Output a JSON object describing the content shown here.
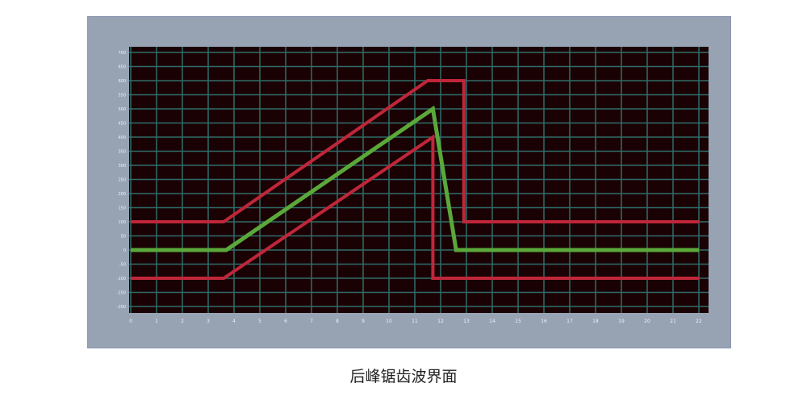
{
  "caption": "后峰锯齿波界面",
  "chart_data": {
    "type": "line",
    "title": "",
    "xlabel": "",
    "ylabel": "",
    "xlim": [
      0,
      22
    ],
    "ylim": [
      -200,
      700
    ],
    "x_ticks": [
      0,
      1,
      2,
      3,
      4,
      5,
      6,
      7,
      8,
      9,
      10,
      11,
      12,
      13,
      14,
      15,
      16,
      17,
      18,
      19,
      20,
      21,
      22
    ],
    "y_ticks": [
      700,
      650,
      600,
      550,
      500,
      450,
      400,
      350,
      300,
      250,
      200,
      150,
      100,
      50,
      0,
      -50,
      -100,
      -150,
      -200
    ],
    "grid": true,
    "colors": {
      "plot_bg": "#1a0204",
      "grid": "#2f6d6a",
      "frame": "#97a3b3",
      "waveform": "#5aa83a",
      "tolerance": "#c0263a"
    },
    "series": [
      {
        "role": "upper-tolerance",
        "color": "#c0263a",
        "points": [
          [
            0,
            100
          ],
          [
            3.6,
            100
          ],
          [
            11.5,
            600
          ],
          [
            12.9,
            600
          ],
          [
            12.9,
            100
          ],
          [
            22,
            100
          ]
        ]
      },
      {
        "role": "waveform",
        "color": "#5aa83a",
        "points": [
          [
            0,
            0
          ],
          [
            3.7,
            0
          ],
          [
            11.7,
            500
          ],
          [
            12.6,
            0
          ],
          [
            22,
            0
          ]
        ]
      },
      {
        "role": "lower-tolerance",
        "color": "#c0263a",
        "points": [
          [
            0,
            -100
          ],
          [
            3.6,
            -100
          ],
          [
            11.7,
            400
          ],
          [
            11.7,
            -100
          ],
          [
            22,
            -100
          ]
        ]
      }
    ]
  }
}
